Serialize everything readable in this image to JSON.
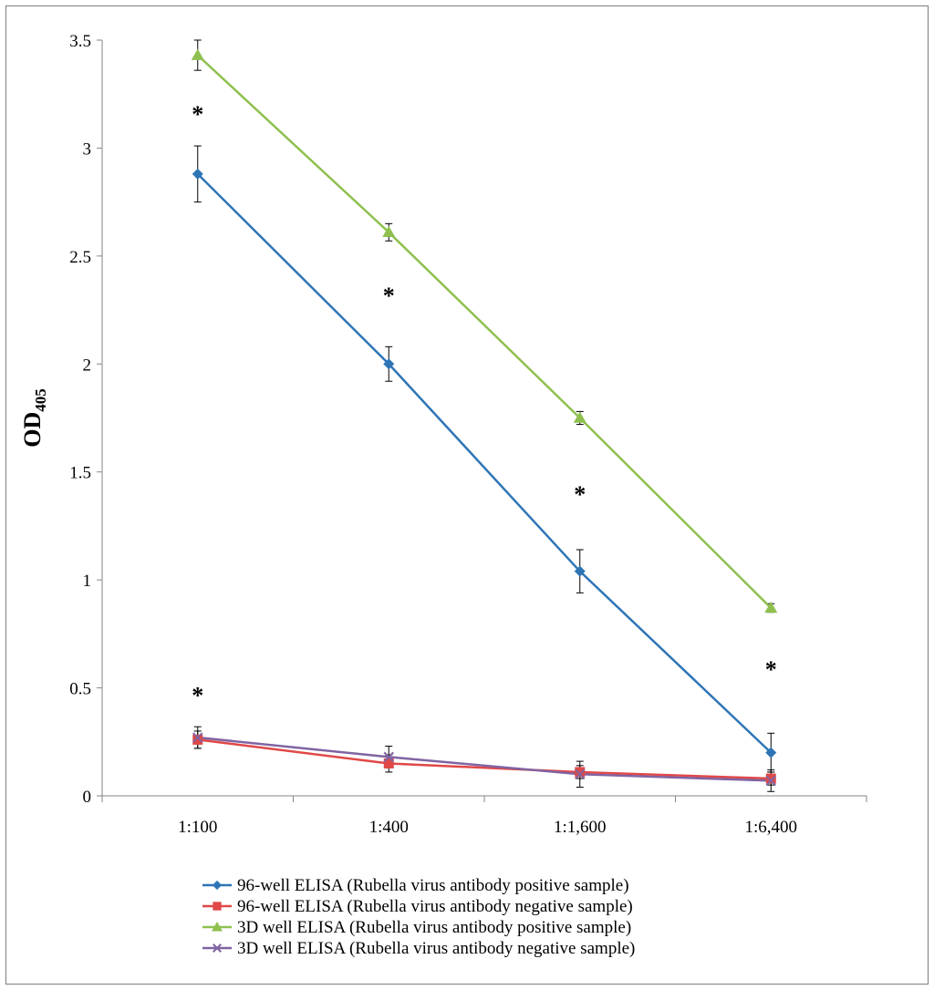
{
  "chart_data": {
    "type": "line",
    "title": "",
    "xlabel": "",
    "ylabel": "OD",
    "ylabel_subscript": "405",
    "categories": [
      "1:100",
      "1:400",
      "1:1,600",
      "1:6,400"
    ],
    "ylim": [
      0,
      3.5
    ],
    "yticks": [
      "0",
      "0.5",
      "1",
      "1.5",
      "2",
      "2.5",
      "3",
      "3.5"
    ],
    "ytick_values": [
      0,
      0.5,
      1,
      1.5,
      2,
      2.5,
      3,
      3.5
    ],
    "grid": false,
    "legend_position": "bottom",
    "series": [
      {
        "name": "96-well ELISA (Rubella virus antibody positive sample)",
        "color": "#2e75b6",
        "marker": "diamond",
        "values": [
          2.88,
          2.0,
          1.04,
          0.2
        ],
        "errors": [
          0.13,
          0.08,
          0.1,
          0.09
        ]
      },
      {
        "name": "96-well ELISA (Rubella virus antibody negative sample)",
        "color": "#e04848",
        "marker": "square",
        "values": [
          0.26,
          0.15,
          0.11,
          0.08
        ],
        "errors": [
          0.04,
          0.04,
          0.03,
          0.03
        ]
      },
      {
        "name": "3D well ELISA (Rubella virus antibody positive sample)",
        "color": "#8fc04f",
        "marker": "triangle",
        "values": [
          3.43,
          2.61,
          1.75,
          0.87
        ],
        "errors": [
          0.07,
          0.04,
          0.03,
          0.02
        ]
      },
      {
        "name": "3D well ELISA (Rubella virus antibody negative sample)",
        "color": "#8064a2",
        "marker": "x",
        "values": [
          0.27,
          0.18,
          0.1,
          0.07
        ],
        "errors": [
          0.05,
          0.05,
          0.06,
          0.05
        ]
      }
    ],
    "annotations": [
      {
        "text": "*",
        "category_index": 0,
        "y": 3.17
      },
      {
        "text": "*",
        "category_index": 1,
        "y": 2.33
      },
      {
        "text": "*",
        "category_index": 2,
        "y": 1.41
      },
      {
        "text": "*",
        "category_index": 3,
        "y": 0.6
      },
      {
        "text": "*",
        "category_index": 0,
        "y": 0.48
      }
    ]
  }
}
